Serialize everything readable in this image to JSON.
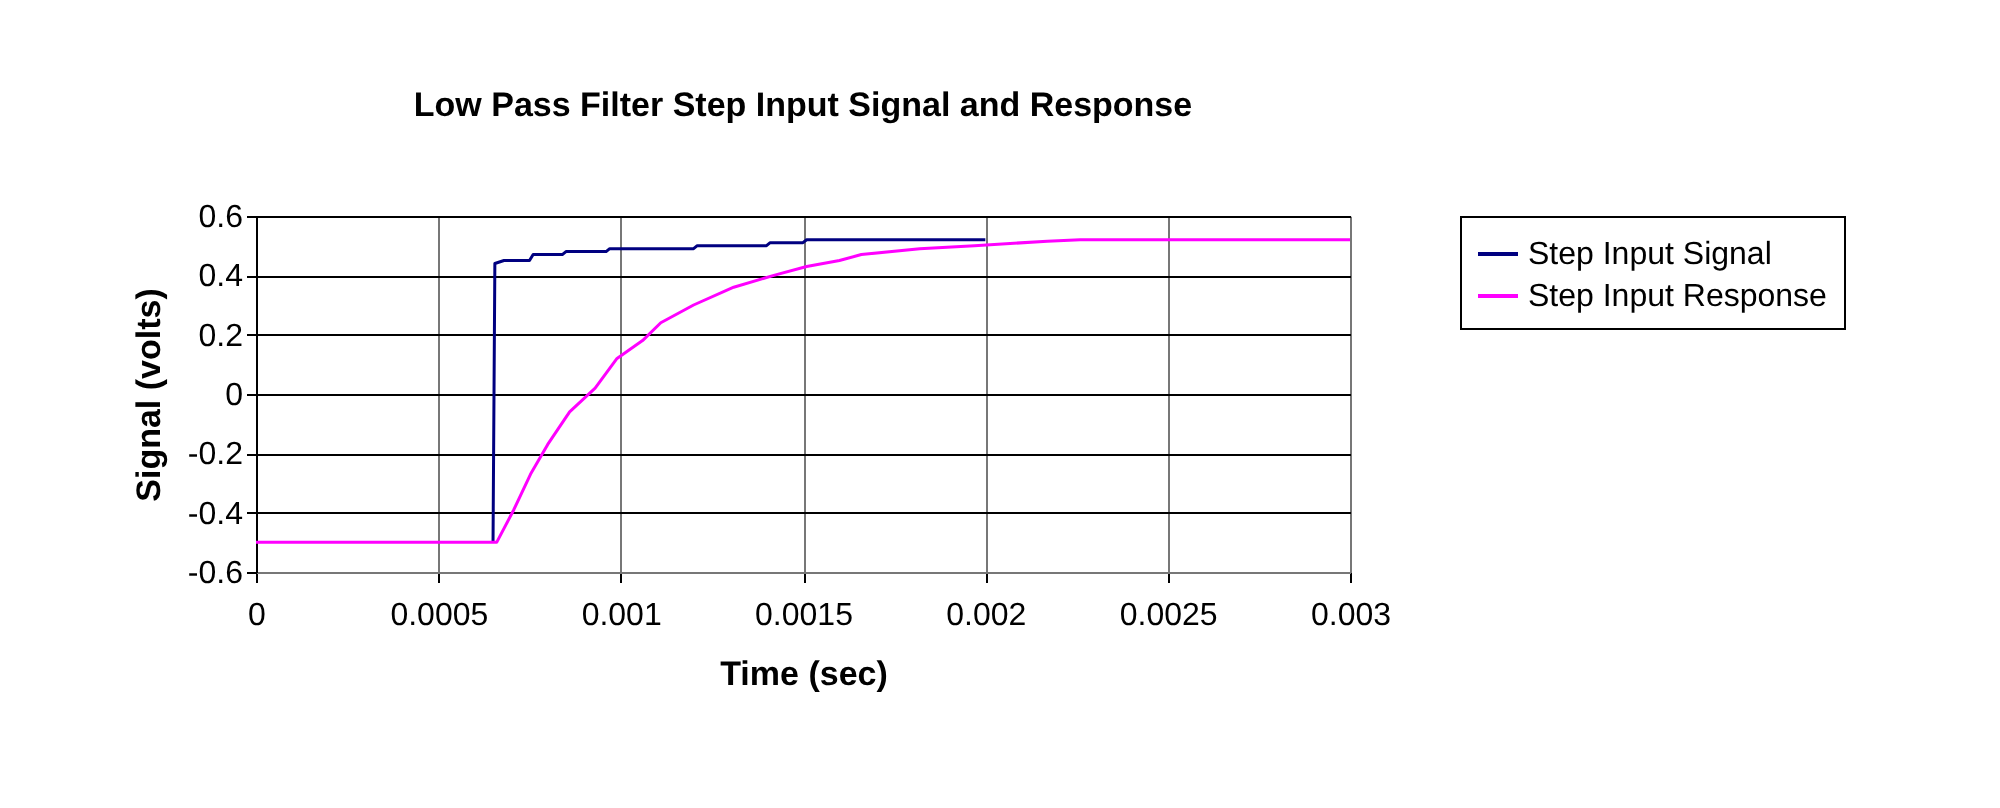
{
  "chart_data": {
    "type": "line",
    "title": "Low Pass Filter Step Input Signal and Response",
    "xlabel": "Time (sec)",
    "ylabel": "Signal (volts)",
    "xlim": [
      0,
      0.003
    ],
    "xticks": [
      0,
      0.0005,
      0.001,
      0.0015,
      0.002,
      0.0025,
      0.003
    ],
    "ylim": [
      -0.6,
      0.6
    ],
    "yticks": [
      -0.6,
      -0.4,
      -0.2,
      0,
      0.2,
      0.4,
      0.6
    ],
    "grid": true,
    "legend": "right",
    "marker": "none",
    "line_style": "solid",
    "series": [
      {
        "name": "Step Input Signal",
        "color": "#000080",
        "x": [
          0.00065,
          0.000655,
          0.00068,
          0.00075,
          0.00076,
          0.00084,
          0.00085,
          0.00096,
          0.00097,
          0.0012,
          0.00121,
          0.0014,
          0.00141,
          0.0015,
          0.00151,
          0.002
        ],
        "values": [
          -0.5,
          0.44,
          0.45,
          0.45,
          0.47,
          0.47,
          0.48,
          0.48,
          0.49,
          0.49,
          0.5,
          0.5,
          0.51,
          0.51,
          0.52,
          0.52
        ]
      },
      {
        "name": "Step Input Response",
        "color": "#ff00ff",
        "x": [
          0,
          0.0002,
          0.0004,
          0.0006,
          0.00066,
          0.000707,
          0.000753,
          0.0008,
          0.00086,
          0.00093,
          0.00099,
          0.00106,
          0.00111,
          0.0012,
          0.00131,
          0.00142,
          0.00151,
          0.0016,
          0.00166,
          0.00182,
          0.00197,
          0.00217,
          0.00226,
          0.0025,
          0.0028,
          0.003
        ],
        "values": [
          -0.5,
          -0.5,
          -0.5,
          -0.5,
          -0.5,
          -0.39,
          -0.27,
          -0.17,
          -0.06,
          0.02,
          0.12,
          0.18,
          0.24,
          0.3,
          0.36,
          0.4,
          0.43,
          0.45,
          0.47,
          0.49,
          0.5,
          0.515,
          0.52,
          0.52,
          0.52,
          0.52
        ]
      }
    ]
  }
}
